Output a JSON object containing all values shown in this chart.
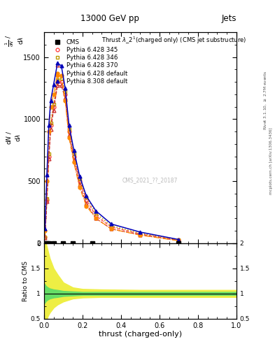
{
  "title_top": "13000 GeV pp",
  "title_right": "Jets",
  "plot_title": "Thrust $\\lambda$_2$^1$(charged only) (CMS jet substructure)",
  "xlabel": "thrust (charged-only)",
  "ylabel_main": "$\\mathrm{d}N$ / $\\mathrm{d}\\lambda$",
  "ylabel_ratio": "Ratio to CMS",
  "right_label_top": "Rivet 3.1.10, $\\geq$ 2.7M events",
  "right_label_bot": "mcplots.cern.ch [arXiv:1306.3436]",
  "watermark": "CMS_2021_??_20187",
  "xlim": [
    0.0,
    1.0
  ],
  "ylim_main": [
    0,
    1700
  ],
  "ylim_ratio": [
    0.5,
    2.0
  ],
  "yticks_main": [
    0,
    500,
    1000,
    1500
  ],
  "yticks_ratio": [
    0.5,
    1.0,
    1.5,
    2.0
  ],
  "py6_345_x": [
    0.005,
    0.015,
    0.025,
    0.035,
    0.05,
    0.07,
    0.09,
    0.11,
    0.13,
    0.155,
    0.185,
    0.22,
    0.27,
    0.35,
    0.5,
    0.7
  ],
  "py6_345_y": [
    50,
    350,
    700,
    950,
    1100,
    1300,
    1300,
    1200,
    900,
    700,
    500,
    350,
    220,
    130,
    75,
    25
  ],
  "py6_346_x": [
    0.005,
    0.015,
    0.025,
    0.035,
    0.05,
    0.07,
    0.09,
    0.11,
    0.13,
    0.155,
    0.185,
    0.22,
    0.27,
    0.35,
    0.5,
    0.7
  ],
  "py6_346_y": [
    50,
    360,
    720,
    970,
    1120,
    1320,
    1330,
    1220,
    920,
    720,
    520,
    370,
    240,
    140,
    80,
    28
  ],
  "py6_370_x": [
    0.005,
    0.015,
    0.025,
    0.035,
    0.05,
    0.07,
    0.09,
    0.11,
    0.13,
    0.155,
    0.185,
    0.22,
    0.27,
    0.35,
    0.5,
    0.7
  ],
  "py6_370_y": [
    45,
    340,
    680,
    920,
    1070,
    1270,
    1270,
    1170,
    870,
    670,
    470,
    320,
    200,
    115,
    68,
    22
  ],
  "py6_def_x": [
    0.005,
    0.015,
    0.025,
    0.035,
    0.05,
    0.07,
    0.09,
    0.11,
    0.13,
    0.155,
    0.185,
    0.22,
    0.27,
    0.35,
    0.5,
    0.7
  ],
  "py6_def_y": [
    100,
    500,
    900,
    1100,
    1200,
    1350,
    1350,
    1150,
    850,
    650,
    450,
    300,
    200,
    115,
    65,
    20
  ],
  "py8_def_x": [
    0.005,
    0.015,
    0.025,
    0.035,
    0.05,
    0.07,
    0.09,
    0.11,
    0.13,
    0.155,
    0.185,
    0.22,
    0.27,
    0.35,
    0.5,
    0.7
  ],
  "py8_def_y": [
    120,
    550,
    950,
    1150,
    1280,
    1450,
    1430,
    1250,
    950,
    750,
    540,
    380,
    260,
    155,
    90,
    30
  ],
  "cms_x": [
    0.005,
    0.015,
    0.025,
    0.05,
    0.1,
    0.15,
    0.25,
    0.7
  ],
  "cms_y": [
    0,
    0,
    0,
    0,
    0,
    0,
    0,
    0
  ],
  "color_py6_345": "#FF4444",
  "color_py6_346": "#BB9900",
  "color_py6_370": "#CC3333",
  "color_py6_def": "#FF8800",
  "color_py8_def": "#0000BB",
  "color_green": "#66DD66",
  "color_yellow": "#EEEE44",
  "ratio_x": [
    0.0,
    0.005,
    0.01,
    0.02,
    0.03,
    0.05,
    0.07,
    0.1,
    0.15,
    0.2,
    0.3,
    0.5,
    0.7,
    1.0
  ],
  "ratio_yel_lo": [
    0.3,
    0.35,
    0.42,
    0.55,
    0.62,
    0.72,
    0.78,
    0.84,
    0.9,
    0.92,
    0.93,
    0.93,
    0.93,
    0.93
  ],
  "ratio_yel_hi": [
    2.0,
    2.0,
    2.0,
    1.85,
    1.7,
    1.5,
    1.38,
    1.22,
    1.12,
    1.09,
    1.08,
    1.07,
    1.07,
    1.07
  ],
  "ratio_grn_lo": [
    0.8,
    0.82,
    0.85,
    0.88,
    0.9,
    0.92,
    0.93,
    0.95,
    0.96,
    0.97,
    0.97,
    0.97,
    0.97,
    0.97
  ],
  "ratio_grn_hi": [
    1.2,
    1.18,
    1.15,
    1.12,
    1.1,
    1.08,
    1.07,
    1.05,
    1.04,
    1.03,
    1.03,
    1.03,
    1.03,
    1.03
  ]
}
